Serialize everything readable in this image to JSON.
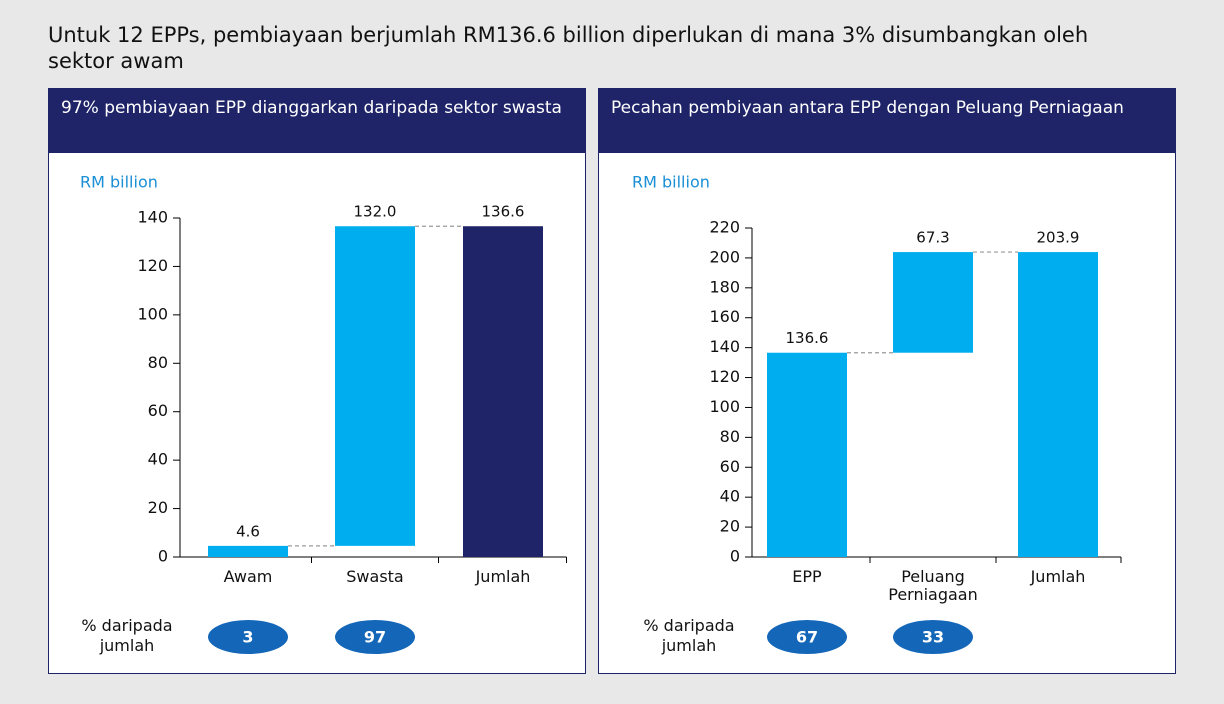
{
  "title": "Untuk 12 EPPs, pembiayaan berjumlah RM136.6 billion diperlukan di mana 3% disumbangkan oleh sektor awam",
  "chart_data": [
    {
      "type": "waterfall",
      "title": "97% pembiayaan EPP dianggarkan daripada sektor swasta",
      "y_label": "RM billion",
      "categories": [
        "Awam",
        "Swasta",
        "Jumlah"
      ],
      "values": [
        4.6,
        132.0,
        136.6
      ],
      "value_labels": [
        "4.6",
        "132.0",
        "136.6"
      ],
      "measure": [
        "relative",
        "relative",
        "total"
      ],
      "colors": [
        "#00aeef",
        "#00aeef",
        "#1f2468"
      ],
      "ylim": [
        0,
        140
      ],
      "yticks": [
        0,
        20,
        40,
        60,
        80,
        100,
        120,
        140
      ],
      "share_label": "% daripada jumlah",
      "shares": [
        3,
        97
      ],
      "share_color": "#1466b8"
    },
    {
      "type": "waterfall",
      "title": "Pecahan pembiyaan antara EPP dengan Peluang Perniagaan",
      "y_label": "RM billion",
      "categories": [
        "EPP",
        "Peluang Perniagaan",
        "Jumlah"
      ],
      "values": [
        136.6,
        67.3,
        203.9
      ],
      "value_labels": [
        "136.6",
        "67.3",
        "203.9"
      ],
      "measure": [
        "relative",
        "relative",
        "total"
      ],
      "colors": [
        "#00aeef",
        "#00aeef",
        "#00aeef"
      ],
      "ylim": [
        0,
        220
      ],
      "yticks": [
        0,
        20,
        40,
        60,
        80,
        100,
        120,
        140,
        160,
        180,
        200,
        220
      ],
      "share_label": "% daripada jumlah",
      "shares": [
        67,
        33
      ],
      "share_color": "#1466b8"
    }
  ]
}
